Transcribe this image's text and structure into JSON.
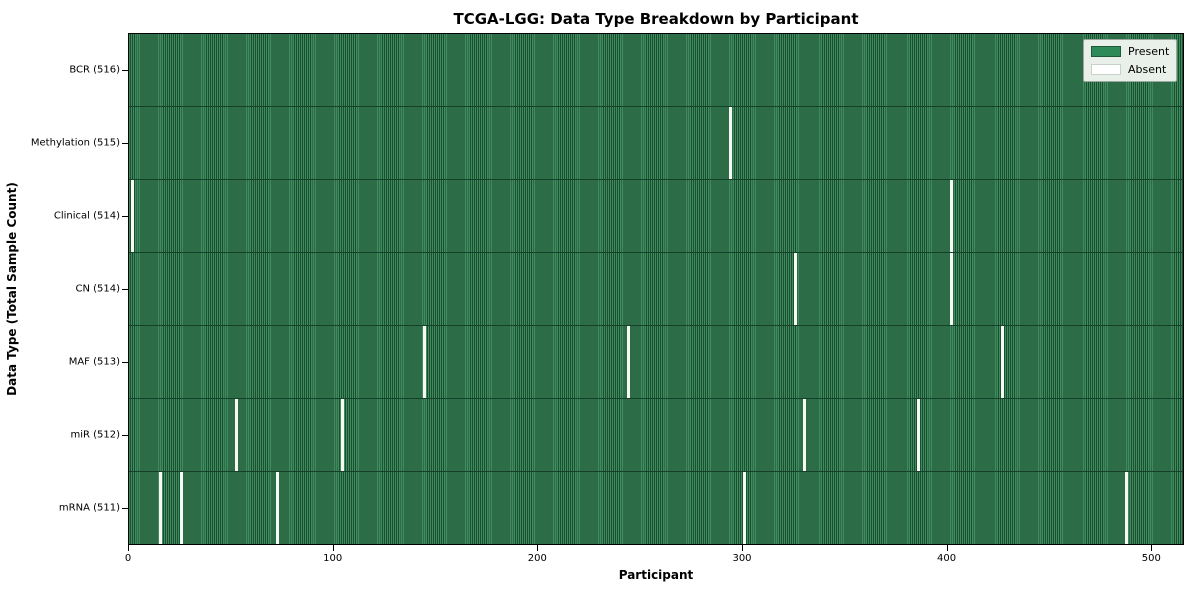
{
  "title": "TCGA-LGG: Data Type Breakdown by Participant",
  "axes": {
    "xlabel": "Participant",
    "ylabel": "Data Type (Total Sample Count)",
    "x_ticks": [
      "0",
      "100",
      "200",
      "300",
      "400",
      "500"
    ]
  },
  "legend": {
    "present_label": "Present",
    "absent_label": "Absent"
  },
  "colors": {
    "present": "#2e8b57",
    "present_stripe_light": "#3f8a5f",
    "present_stripe_dark": "#1a5030",
    "absent": "#f7f7f3",
    "legend_bg": "#e9efe9"
  },
  "chart_data": {
    "type": "heatmap",
    "title": "TCGA-LGG: Data Type Breakdown by Participant",
    "xlabel": "Participant",
    "ylabel": "Data Type (Total Sample Count)",
    "x_range": [
      0,
      516
    ],
    "x_tick_values": [
      0,
      100,
      200,
      300,
      400,
      500
    ],
    "total_participants": 516,
    "legend_entries": [
      "Present",
      "Absent"
    ],
    "legend_position": "upper right",
    "grid": false,
    "rows": [
      {
        "label": "BCR (516)",
        "data_type": "BCR",
        "total_samples": 516,
        "absent_participants": []
      },
      {
        "label": "Methylation (515)",
        "data_type": "Methylation",
        "total_samples": 515,
        "absent_participants": [
          294
        ]
      },
      {
        "label": "Clinical (514)",
        "data_type": "Clinical",
        "total_samples": 514,
        "absent_participants": [
          1,
          402
        ]
      },
      {
        "label": "CN (514)",
        "data_type": "CN",
        "total_samples": 514,
        "absent_participants": [
          326,
          402
        ]
      },
      {
        "label": "MAF (513)",
        "data_type": "MAF",
        "total_samples": 513,
        "absent_participants": [
          144,
          244,
          427
        ]
      },
      {
        "label": "miR (512)",
        "data_type": "miR",
        "total_samples": 512,
        "absent_participants": [
          52,
          104,
          330,
          386
        ]
      },
      {
        "label": "mRNA (511)",
        "data_type": "mRNA",
        "total_samples": 511,
        "absent_participants": [
          15,
          25,
          72,
          301,
          488
        ]
      }
    ]
  }
}
